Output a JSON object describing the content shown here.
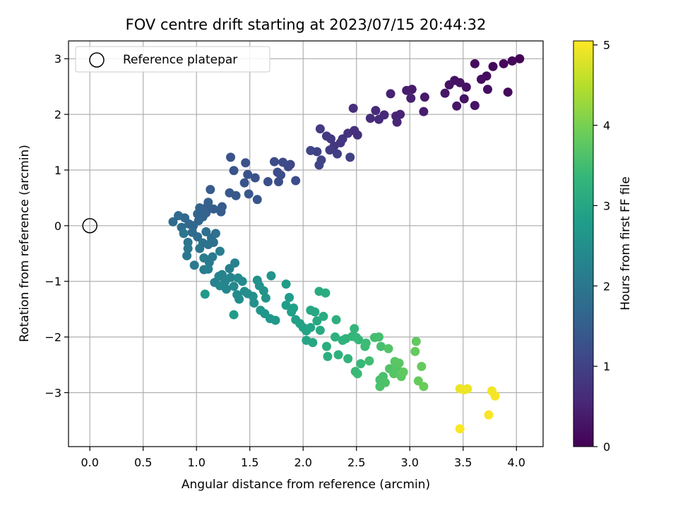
{
  "chart_data": {
    "type": "scatter",
    "title": "FOV centre drift starting at 2023/07/15 20:44:32",
    "xlabel": "Angular distance from reference (arcmin)",
    "ylabel": "Rotation from reference (arcmin)",
    "xlim": [
      -0.2,
      4.25
    ],
    "ylim": [
      -3.97,
      3.32
    ],
    "xticks": [
      "0.0",
      "0.5",
      "1.0",
      "1.5",
      "2.0",
      "2.5",
      "3.0",
      "3.5",
      "4.0"
    ],
    "xtick_values": [
      0,
      0.5,
      1,
      1.5,
      2,
      2.5,
      3,
      3.5,
      4
    ],
    "yticks": [
      "−3",
      "−2",
      "−1",
      "0",
      "1",
      "2",
      "3"
    ],
    "ytick_values": [
      -3,
      -2,
      -1,
      0,
      1,
      2,
      3
    ],
    "grid": true,
    "legend": {
      "placement": "top-left",
      "label": "Reference platepar",
      "marker": "open-circle"
    },
    "reference_point": {
      "x": 0,
      "y": 0
    },
    "colorbar": {
      "label": "Hours from first FF file",
      "colormap": "viridis",
      "range": [
        0,
        5.05
      ],
      "ticks": [
        "0",
        "1",
        "2",
        "3",
        "4",
        "5"
      ],
      "tick_values": [
        0,
        1,
        2,
        3,
        4,
        5
      ]
    },
    "colormap_stops": [
      "#440154",
      "#482878",
      "#3e4989",
      "#31688e",
      "#26828e",
      "#1f9e89",
      "#35b779",
      "#6ece58",
      "#b5de2b",
      "#fde725"
    ],
    "points": [
      {
        "x": 4.03,
        "y": 3.0,
        "t": 0.05
      },
      {
        "x": 3.96,
        "y": 2.96,
        "t": 0.08
      },
      {
        "x": 3.88,
        "y": 2.91,
        "t": 0.1
      },
      {
        "x": 3.78,
        "y": 2.86,
        "t": 0.12
      },
      {
        "x": 3.72,
        "y": 2.69,
        "t": 0.15
      },
      {
        "x": 3.67,
        "y": 2.63,
        "t": 0.18
      },
      {
        "x": 3.61,
        "y": 2.91,
        "t": 0.16
      },
      {
        "x": 3.92,
        "y": 2.4,
        "t": 0.14
      },
      {
        "x": 3.73,
        "y": 2.45,
        "t": 0.2
      },
      {
        "x": 3.53,
        "y": 2.49,
        "t": 0.22
      },
      {
        "x": 3.47,
        "y": 2.57,
        "t": 0.24
      },
      {
        "x": 3.42,
        "y": 2.61,
        "t": 0.25
      },
      {
        "x": 3.37,
        "y": 2.53,
        "t": 0.27
      },
      {
        "x": 3.33,
        "y": 2.38,
        "t": 0.3
      },
      {
        "x": 3.51,
        "y": 2.28,
        "t": 0.26
      },
      {
        "x": 3.44,
        "y": 2.15,
        "t": 0.32
      },
      {
        "x": 3.61,
        "y": 2.16,
        "t": 0.29
      },
      {
        "x": 3.14,
        "y": 2.31,
        "t": 0.35
      },
      {
        "x": 3.13,
        "y": 2.05,
        "t": 0.4
      },
      {
        "x": 3.02,
        "y": 2.45,
        "t": 0.38
      },
      {
        "x": 2.97,
        "y": 2.43,
        "t": 0.42
      },
      {
        "x": 3.01,
        "y": 2.29,
        "t": 0.45
      },
      {
        "x": 2.91,
        "y": 2.0,
        "t": 0.5
      },
      {
        "x": 2.87,
        "y": 1.97,
        "t": 0.53
      },
      {
        "x": 2.88,
        "y": 1.86,
        "t": 0.55
      },
      {
        "x": 2.82,
        "y": 2.37,
        "t": 0.48
      },
      {
        "x": 2.76,
        "y": 1.99,
        "t": 0.58
      },
      {
        "x": 2.68,
        "y": 2.07,
        "t": 0.6
      },
      {
        "x": 2.71,
        "y": 1.91,
        "t": 0.62
      },
      {
        "x": 2.63,
        "y": 1.93,
        "t": 0.65
      },
      {
        "x": 2.47,
        "y": 2.11,
        "t": 0.68
      },
      {
        "x": 2.51,
        "y": 1.63,
        "t": 0.7
      },
      {
        "x": 2.48,
        "y": 1.71,
        "t": 0.72
      },
      {
        "x": 2.42,
        "y": 1.66,
        "t": 0.75
      },
      {
        "x": 2.37,
        "y": 1.56,
        "t": 0.77
      },
      {
        "x": 2.35,
        "y": 1.49,
        "t": 0.8
      },
      {
        "x": 2.29,
        "y": 1.43,
        "t": 0.82
      },
      {
        "x": 2.26,
        "y": 1.56,
        "t": 0.85
      },
      {
        "x": 2.22,
        "y": 1.61,
        "t": 0.87
      },
      {
        "x": 2.16,
        "y": 1.74,
        "t": 0.9
      },
      {
        "x": 2.25,
        "y": 1.36,
        "t": 0.92
      },
      {
        "x": 2.32,
        "y": 1.29,
        "t": 0.95
      },
      {
        "x": 2.44,
        "y": 1.23,
        "t": 0.98
      },
      {
        "x": 2.13,
        "y": 1.33,
        "t": 1.0
      },
      {
        "x": 2.17,
        "y": 1.18,
        "t": 1.03
      },
      {
        "x": 2.15,
        "y": 1.09,
        "t": 1.05
      },
      {
        "x": 2.07,
        "y": 1.35,
        "t": 1.07
      },
      {
        "x": 1.88,
        "y": 1.1,
        "t": 1.1
      },
      {
        "x": 1.86,
        "y": 1.06,
        "t": 1.12
      },
      {
        "x": 1.81,
        "y": 1.14,
        "t": 1.14
      },
      {
        "x": 1.73,
        "y": 1.15,
        "t": 1.16
      },
      {
        "x": 1.76,
        "y": 0.96,
        "t": 1.18
      },
      {
        "x": 1.79,
        "y": 0.91,
        "t": 1.2
      },
      {
        "x": 1.77,
        "y": 0.79,
        "t": 1.22
      },
      {
        "x": 1.93,
        "y": 0.81,
        "t": 1.18
      },
      {
        "x": 1.67,
        "y": 0.79,
        "t": 1.24
      },
      {
        "x": 1.46,
        "y": 1.13,
        "t": 1.26
      },
      {
        "x": 1.48,
        "y": 0.92,
        "t": 1.28
      },
      {
        "x": 1.55,
        "y": 0.86,
        "t": 1.3
      },
      {
        "x": 1.45,
        "y": 0.77,
        "t": 1.32
      },
      {
        "x": 1.32,
        "y": 1.23,
        "t": 1.3
      },
      {
        "x": 1.35,
        "y": 0.99,
        "t": 1.34
      },
      {
        "x": 1.37,
        "y": 0.54,
        "t": 1.4
      },
      {
        "x": 1.31,
        "y": 0.59,
        "t": 1.42
      },
      {
        "x": 1.49,
        "y": 0.57,
        "t": 1.38
      },
      {
        "x": 1.57,
        "y": 0.47,
        "t": 1.36
      },
      {
        "x": 1.24,
        "y": 0.34,
        "t": 1.45
      },
      {
        "x": 1.23,
        "y": 0.25,
        "t": 1.48
      },
      {
        "x": 1.16,
        "y": 0.3,
        "t": 1.5
      },
      {
        "x": 1.13,
        "y": 0.65,
        "t": 1.44
      },
      {
        "x": 1.11,
        "y": 0.42,
        "t": 1.52
      },
      {
        "x": 1.1,
        "y": 0.34,
        "t": 1.54
      },
      {
        "x": 1.09,
        "y": 0.23,
        "t": 1.56
      },
      {
        "x": 1.06,
        "y": 0.16,
        "t": 1.58
      },
      {
        "x": 1.03,
        "y": 0.32,
        "t": 1.6
      },
      {
        "x": 1.01,
        "y": 0.21,
        "t": 1.62
      },
      {
        "x": 1.02,
        "y": 0.09,
        "t": 1.64
      },
      {
        "x": 0.97,
        "y": 0.0,
        "t": 1.66
      },
      {
        "x": 0.93,
        "y": 0.03,
        "t": 1.68
      },
      {
        "x": 0.89,
        "y": 0.14,
        "t": 1.7
      },
      {
        "x": 0.83,
        "y": 0.18,
        "t": 1.72
      },
      {
        "x": 0.78,
        "y": 0.07,
        "t": 1.74
      },
      {
        "x": 0.86,
        "y": -0.03,
        "t": 1.76
      },
      {
        "x": 0.96,
        "y": -0.12,
        "t": 1.78
      },
      {
        "x": 1.01,
        "y": -0.2,
        "t": 1.8
      },
      {
        "x": 1.09,
        "y": -0.11,
        "t": 1.82
      },
      {
        "x": 1.14,
        "y": -0.22,
        "t": 1.84
      },
      {
        "x": 1.18,
        "y": -0.14,
        "t": 1.86
      },
      {
        "x": 1.16,
        "y": -0.3,
        "t": 1.88
      },
      {
        "x": 1.11,
        "y": -0.34,
        "t": 1.9
      },
      {
        "x": 1.06,
        "y": -0.31,
        "t": 1.92
      },
      {
        "x": 1.03,
        "y": -0.41,
        "t": 1.94
      },
      {
        "x": 0.92,
        "y": -0.3,
        "t": 1.96
      },
      {
        "x": 0.88,
        "y": -0.14,
        "t": 1.98
      },
      {
        "x": 0.92,
        "y": -0.41,
        "t": 2.0
      },
      {
        "x": 0.91,
        "y": -0.54,
        "t": 2.02
      },
      {
        "x": 0.98,
        "y": -0.71,
        "t": 2.04
      },
      {
        "x": 1.15,
        "y": -0.56,
        "t": 2.06
      },
      {
        "x": 1.12,
        "y": -0.66,
        "t": 2.08
      },
      {
        "x": 1.07,
        "y": -0.58,
        "t": 2.1
      },
      {
        "x": 1.07,
        "y": -0.79,
        "t": 2.12
      },
      {
        "x": 1.22,
        "y": -0.46,
        "t": 2.14
      },
      {
        "x": 1.11,
        "y": -0.78,
        "t": 2.16
      },
      {
        "x": 1.31,
        "y": -0.77,
        "t": 2.18
      },
      {
        "x": 1.36,
        "y": -0.67,
        "t": 2.2
      },
      {
        "x": 1.24,
        "y": -0.88,
        "t": 2.22
      },
      {
        "x": 1.17,
        "y": -1.02,
        "t": 2.24
      },
      {
        "x": 1.21,
        "y": -0.91,
        "t": 2.26
      },
      {
        "x": 1.27,
        "y": -1.0,
        "t": 2.28
      },
      {
        "x": 1.32,
        "y": -0.93,
        "t": 2.3
      },
      {
        "x": 1.22,
        "y": -1.08,
        "t": 2.32
      },
      {
        "x": 1.28,
        "y": -1.14,
        "t": 2.34
      },
      {
        "x": 1.35,
        "y": -1.09,
        "t": 2.36
      },
      {
        "x": 1.39,
        "y": -0.94,
        "t": 2.38
      },
      {
        "x": 1.43,
        "y": -1.0,
        "t": 2.4
      },
      {
        "x": 1.38,
        "y": -1.24,
        "t": 2.42
      },
      {
        "x": 1.4,
        "y": -1.32,
        "t": 2.44
      },
      {
        "x": 1.45,
        "y": -1.18,
        "t": 2.46
      },
      {
        "x": 1.48,
        "y": -1.22,
        "t": 2.48
      },
      {
        "x": 1.53,
        "y": -1.27,
        "t": 2.5
      },
      {
        "x": 1.54,
        "y": -1.39,
        "t": 2.52
      },
      {
        "x": 1.57,
        "y": -0.98,
        "t": 2.54
      },
      {
        "x": 1.59,
        "y": -1.08,
        "t": 2.56
      },
      {
        "x": 1.63,
        "y": -1.17,
        "t": 2.58
      },
      {
        "x": 1.7,
        "y": -0.9,
        "t": 2.6
      },
      {
        "x": 1.65,
        "y": -1.3,
        "t": 2.62
      },
      {
        "x": 1.6,
        "y": -1.52,
        "t": 2.64
      },
      {
        "x": 1.64,
        "y": -1.58,
        "t": 2.66
      },
      {
        "x": 1.69,
        "y": -1.67,
        "t": 2.68
      },
      {
        "x": 1.74,
        "y": -1.7,
        "t": 2.7
      },
      {
        "x": 1.08,
        "y": -1.23,
        "t": 2.72
      },
      {
        "x": 1.35,
        "y": -1.6,
        "t": 2.74
      },
      {
        "x": 1.84,
        "y": -1.05,
        "t": 2.76
      },
      {
        "x": 1.87,
        "y": -1.29,
        "t": 2.78
      },
      {
        "x": 1.84,
        "y": -1.43,
        "t": 2.8
      },
      {
        "x": 1.89,
        "y": -1.55,
        "t": 2.82
      },
      {
        "x": 1.91,
        "y": -1.48,
        "t": 2.84
      },
      {
        "x": 1.93,
        "y": -1.69,
        "t": 2.86
      },
      {
        "x": 1.97,
        "y": -1.76,
        "t": 2.88
      },
      {
        "x": 2.0,
        "y": -1.83,
        "t": 2.9
      },
      {
        "x": 2.03,
        "y": -1.89,
        "t": 2.92
      },
      {
        "x": 2.07,
        "y": -1.83,
        "t": 2.94
      },
      {
        "x": 2.03,
        "y": -2.06,
        "t": 2.96
      },
      {
        "x": 2.09,
        "y": -2.1,
        "t": 2.98
      },
      {
        "x": 2.07,
        "y": -1.52,
        "t": 3.0
      },
      {
        "x": 2.11,
        "y": -1.55,
        "t": 3.02
      },
      {
        "x": 2.13,
        "y": -1.71,
        "t": 3.04
      },
      {
        "x": 2.16,
        "y": -1.88,
        "t": 3.06
      },
      {
        "x": 2.19,
        "y": -1.63,
        "t": 3.08
      },
      {
        "x": 2.15,
        "y": -1.18,
        "t": 3.1
      },
      {
        "x": 2.21,
        "y": -1.21,
        "t": 3.12
      },
      {
        "x": 2.22,
        "y": -2.17,
        "t": 3.14
      },
      {
        "x": 2.23,
        "y": -2.35,
        "t": 3.16
      },
      {
        "x": 2.31,
        "y": -1.69,
        "t": 3.18
      },
      {
        "x": 2.3,
        "y": -2.0,
        "t": 3.2
      },
      {
        "x": 2.33,
        "y": -2.32,
        "t": 3.22
      },
      {
        "x": 2.37,
        "y": -2.06,
        "t": 3.24
      },
      {
        "x": 2.4,
        "y": -2.03,
        "t": 3.26
      },
      {
        "x": 2.42,
        "y": -2.39,
        "t": 3.28
      },
      {
        "x": 2.46,
        "y": -1.99,
        "t": 3.3
      },
      {
        "x": 2.48,
        "y": -1.85,
        "t": 3.32
      },
      {
        "x": 2.5,
        "y": -2.01,
        "t": 3.34
      },
      {
        "x": 2.52,
        "y": -2.05,
        "t": 3.36
      },
      {
        "x": 2.54,
        "y": -2.48,
        "t": 3.38
      },
      {
        "x": 2.49,
        "y": -2.62,
        "t": 3.4
      },
      {
        "x": 2.51,
        "y": -2.66,
        "t": 3.42
      },
      {
        "x": 2.58,
        "y": -2.17,
        "t": 3.44
      },
      {
        "x": 2.59,
        "y": -2.11,
        "t": 3.46
      },
      {
        "x": 2.62,
        "y": -2.43,
        "t": 3.48
      },
      {
        "x": 2.67,
        "y": -2.01,
        "t": 3.5
      },
      {
        "x": 2.71,
        "y": -2.0,
        "t": 3.52
      },
      {
        "x": 2.73,
        "y": -2.17,
        "t": 3.54
      },
      {
        "x": 2.75,
        "y": -2.71,
        "t": 3.56
      },
      {
        "x": 2.72,
        "y": -2.77,
        "t": 3.58
      },
      {
        "x": 2.72,
        "y": -2.89,
        "t": 3.6
      },
      {
        "x": 2.77,
        "y": -2.82,
        "t": 3.62
      },
      {
        "x": 2.81,
        "y": -2.57,
        "t": 3.64
      },
      {
        "x": 2.8,
        "y": -2.21,
        "t": 3.66
      },
      {
        "x": 2.85,
        "y": -2.66,
        "t": 3.68
      },
      {
        "x": 2.88,
        "y": -2.56,
        "t": 3.7
      },
      {
        "x": 2.9,
        "y": -2.47,
        "t": 3.72
      },
      {
        "x": 2.86,
        "y": -2.44,
        "t": 3.74
      },
      {
        "x": 2.92,
        "y": -2.71,
        "t": 3.76
      },
      {
        "x": 2.94,
        "y": -2.63,
        "t": 3.78
      },
      {
        "x": 3.06,
        "y": -2.08,
        "t": 3.8
      },
      {
        "x": 3.05,
        "y": -2.26,
        "t": 3.82
      },
      {
        "x": 3.11,
        "y": -2.53,
        "t": 3.84
      },
      {
        "x": 3.08,
        "y": -2.79,
        "t": 3.86
      },
      {
        "x": 3.13,
        "y": -2.89,
        "t": 3.88
      },
      {
        "x": 3.47,
        "y": -2.93,
        "t": 4.9
      },
      {
        "x": 3.54,
        "y": -2.93,
        "t": 4.92
      },
      {
        "x": 3.51,
        "y": -2.95,
        "t": 4.94
      },
      {
        "x": 3.77,
        "y": -2.97,
        "t": 4.96
      },
      {
        "x": 3.8,
        "y": -3.06,
        "t": 4.98
      },
      {
        "x": 3.74,
        "y": -3.4,
        "t": 5.0
      },
      {
        "x": 3.47,
        "y": -3.65,
        "t": 5.02
      }
    ]
  }
}
